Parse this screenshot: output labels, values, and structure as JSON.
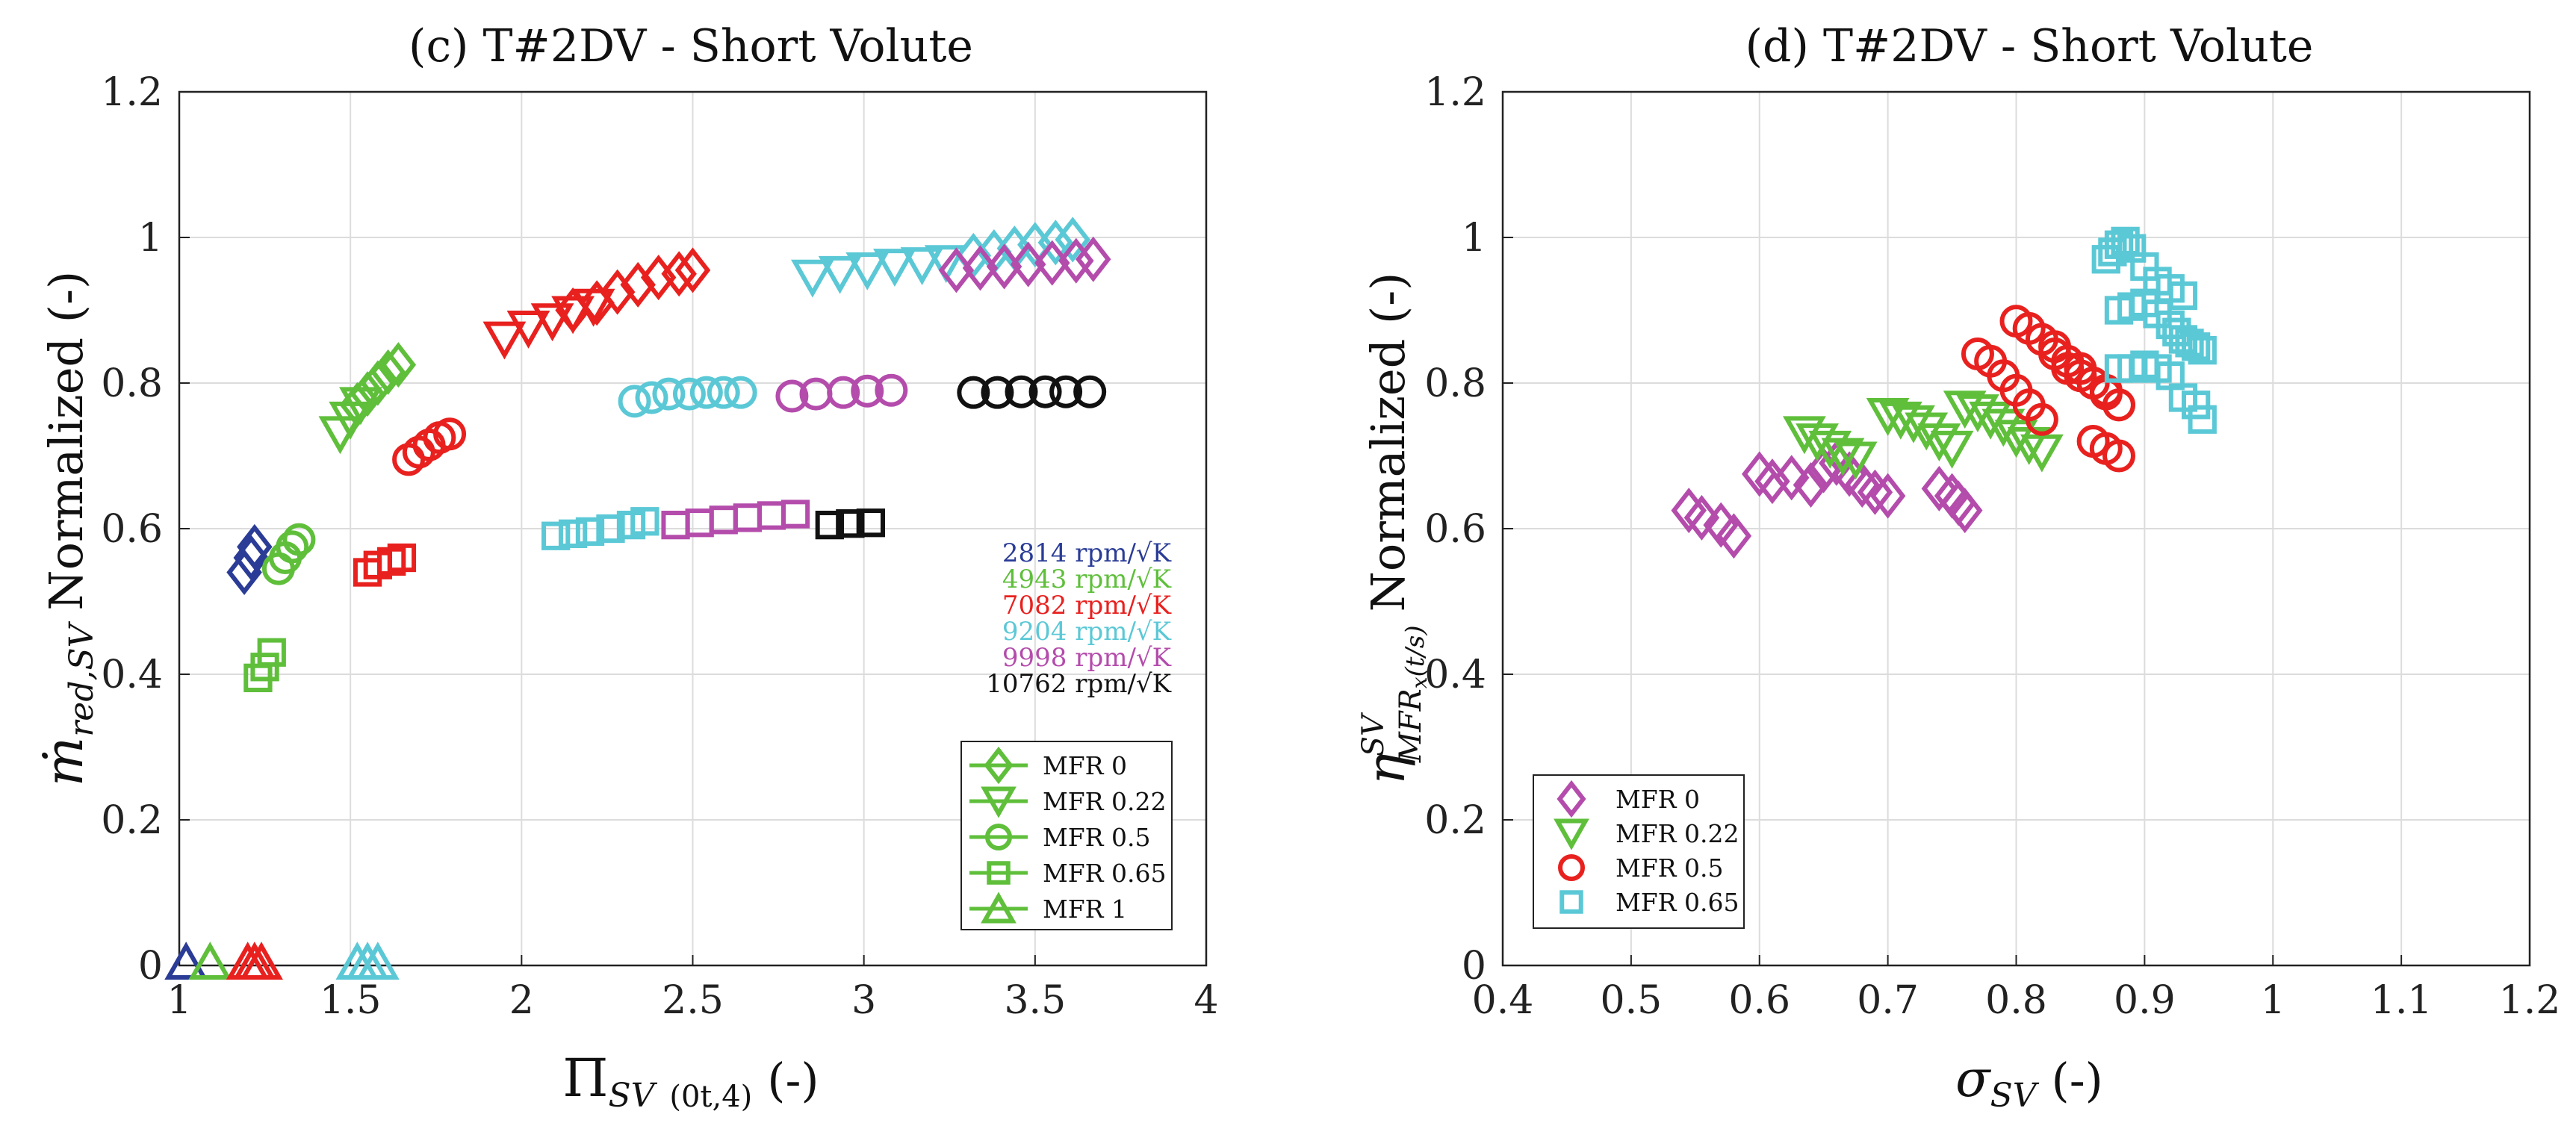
{
  "chart_data": [
    {
      "type": "scatter",
      "title": "(c) T#2DV - Short Volute",
      "xlabel": "Π_SV (0t,4) (-)",
      "xlabel_main": "Π",
      "xlabel_sub": "SV",
      "xlabel_sub2": "(0t,4)",
      "xlabel_unit": "(-)",
      "ylabel": "ṁ_red,SV Normalized (-)",
      "ylabel_main": "ṁ",
      "ylabel_sub": "red,SV",
      "ylabel_rest": "Normalized (-)",
      "xlim": [
        1,
        4
      ],
      "ylim": [
        0,
        1.2
      ],
      "xticks": [
        1,
        1.5,
        2,
        2.5,
        3,
        3.5,
        4
      ],
      "xtick_labels": [
        "1",
        "1.5",
        "2",
        "2.5",
        "3",
        "3.5",
        "4"
      ],
      "yticks": [
        0,
        0.2,
        0.4,
        0.6,
        0.8,
        1,
        1.2
      ],
      "ytick_labels": [
        "0",
        "0.2",
        "0.4",
        "0.6",
        "0.8",
        "1",
        "1.2"
      ],
      "grid": true,
      "speed_legend": [
        {
          "label": "2814 rpm/√K",
          "color": "#2a3c96"
        },
        {
          "label": "4943 rpm/√K",
          "color": "#5fbf3b"
        },
        {
          "label": "7082 rpm/√K",
          "color": "#e8211f"
        },
        {
          "label": "9204 rpm/√K",
          "color": "#5bc8d6"
        },
        {
          "label": "9998 rpm/√K",
          "color": "#b44cac"
        },
        {
          "label": "10762 rpm/√K",
          "color": "#111111"
        }
      ],
      "marker_legend": {
        "placement": "bottom-right",
        "color": "#5fbf3b",
        "entries": [
          {
            "label": "MFR 0",
            "marker": "diamond"
          },
          {
            "label": "MFR 0.22",
            "marker": "triangle-down"
          },
          {
            "label": "MFR 0.5",
            "marker": "circle"
          },
          {
            "label": "MFR 0.65",
            "marker": "square"
          },
          {
            "label": "MFR 1",
            "marker": "triangle-up"
          }
        ]
      },
      "series": [
        {
          "name": "2814 MFR 0",
          "color": "#2a3c96",
          "marker": "diamond",
          "x": [
            1.19,
            1.21,
            1.22
          ],
          "y": [
            0.54,
            0.56,
            0.575
          ]
        },
        {
          "name": "2814 MFR 1",
          "color": "#2a3c96",
          "marker": "triangle-up",
          "x": [
            1.02
          ],
          "y": [
            0.005
          ]
        },
        {
          "name": "4943 MFR 0",
          "color": "#5fbf3b",
          "marker": "diamond",
          "x": [
            1.52,
            1.55,
            1.58,
            1.61,
            1.64
          ],
          "y": [
            0.77,
            0.785,
            0.8,
            0.815,
            0.825
          ]
        },
        {
          "name": "4943 MFR 0.22",
          "color": "#5fbf3b",
          "marker": "triangle-down",
          "x": [
            1.47,
            1.5,
            1.53
          ],
          "y": [
            0.73,
            0.75,
            0.77
          ]
        },
        {
          "name": "4943 MFR 0.5",
          "color": "#5fbf3b",
          "marker": "circle",
          "x": [
            1.29,
            1.31,
            1.33,
            1.35
          ],
          "y": [
            0.545,
            0.56,
            0.575,
            0.585
          ]
        },
        {
          "name": "4943 MFR 0.65",
          "color": "#5fbf3b",
          "marker": "square",
          "x": [
            1.23,
            1.25,
            1.27
          ],
          "y": [
            0.395,
            0.41,
            0.43
          ]
        },
        {
          "name": "4943 MFR 1",
          "color": "#5fbf3b",
          "marker": "triangle-up",
          "x": [
            1.09
          ],
          "y": [
            0.005
          ]
        },
        {
          "name": "7082 MFR 0",
          "color": "#e8211f",
          "marker": "diamond",
          "x": [
            2.15,
            2.22,
            2.28,
            2.34,
            2.4,
            2.46,
            2.5
          ],
          "y": [
            0.9,
            0.91,
            0.925,
            0.935,
            0.945,
            0.95,
            0.955
          ]
        },
        {
          "name": "7082 MFR 0.22",
          "color": "#e8211f",
          "marker": "triangle-down",
          "x": [
            1.95,
            2.02,
            2.09,
            2.15,
            2.21
          ],
          "y": [
            0.86,
            0.875,
            0.885,
            0.895,
            0.905
          ]
        },
        {
          "name": "7082 MFR 0.5",
          "color": "#e8211f",
          "marker": "circle",
          "x": [
            1.67,
            1.7,
            1.73,
            1.76,
            1.79
          ],
          "y": [
            0.695,
            0.705,
            0.715,
            0.725,
            0.73
          ]
        },
        {
          "name": "7082 MFR 0.65",
          "color": "#e8211f",
          "marker": "square",
          "x": [
            1.55,
            1.58,
            1.62,
            1.65
          ],
          "y": [
            0.54,
            0.55,
            0.555,
            0.56
          ]
        },
        {
          "name": "7082 MFR 1",
          "color": "#e8211f",
          "marker": "triangle-up",
          "x": [
            1.2,
            1.22,
            1.24
          ],
          "y": [
            0.005,
            0.005,
            0.005
          ]
        },
        {
          "name": "9204 MFR 0",
          "color": "#5bc8d6",
          "marker": "diamond",
          "x": [
            3.32,
            3.38,
            3.44,
            3.5,
            3.56,
            3.61
          ],
          "y": [
            0.975,
            0.98,
            0.985,
            0.99,
            0.993,
            0.997
          ]
        },
        {
          "name": "9204 MFR 0.22",
          "color": "#5bc8d6",
          "marker": "triangle-down",
          "x": [
            2.85,
            2.93,
            3.01,
            3.09,
            3.17,
            3.24
          ],
          "y": [
            0.945,
            0.95,
            0.955,
            0.96,
            0.962,
            0.965
          ]
        },
        {
          "name": "9204 MFR 0.5",
          "color": "#5bc8d6",
          "marker": "circle",
          "x": [
            2.33,
            2.38,
            2.43,
            2.49,
            2.54,
            2.59,
            2.64
          ],
          "y": [
            0.775,
            0.78,
            0.785,
            0.785,
            0.787,
            0.787,
            0.787
          ]
        },
        {
          "name": "9204 MFR 0.65",
          "color": "#5bc8d6",
          "marker": "square",
          "x": [
            2.1,
            2.15,
            2.2,
            2.26,
            2.32,
            2.36
          ],
          "y": [
            0.59,
            0.593,
            0.596,
            0.6,
            0.605,
            0.61
          ]
        },
        {
          "name": "9204 MFR 1",
          "color": "#5bc8d6",
          "marker": "triangle-up",
          "x": [
            1.52,
            1.55,
            1.58
          ],
          "y": [
            0.005,
            0.005,
            0.005
          ]
        },
        {
          "name": "9998 MFR 0",
          "color": "#b44cac",
          "marker": "diamond",
          "x": [
            3.27,
            3.34,
            3.41,
            3.48,
            3.55,
            3.62,
            3.67
          ],
          "y": [
            0.955,
            0.958,
            0.96,
            0.963,
            0.965,
            0.968,
            0.97
          ]
        },
        {
          "name": "9998 MFR 0.5",
          "color": "#b44cac",
          "marker": "circle",
          "x": [
            2.79,
            2.86,
            2.94,
            3.01,
            3.08
          ],
          "y": [
            0.782,
            0.785,
            0.787,
            0.789,
            0.79
          ]
        },
        {
          "name": "9998 MFR 0.65",
          "color": "#b44cac",
          "marker": "square",
          "x": [
            2.45,
            2.52,
            2.59,
            2.66,
            2.73,
            2.8
          ],
          "y": [
            0.605,
            0.608,
            0.612,
            0.615,
            0.618,
            0.62
          ]
        },
        {
          "name": "10762 MFR 0.5",
          "color": "#111111",
          "marker": "circle",
          "x": [
            3.32,
            3.39,
            3.46,
            3.53,
            3.59,
            3.66
          ],
          "y": [
            0.787,
            0.787,
            0.788,
            0.788,
            0.788,
            0.788
          ]
        },
        {
          "name": "10762 MFR 0.65",
          "color": "#111111",
          "marker": "square",
          "x": [
            2.9,
            2.96,
            3.02
          ],
          "y": [
            0.605,
            0.607,
            0.608
          ]
        }
      ]
    },
    {
      "type": "scatter",
      "title": "(d) T#2DV - Short Volute",
      "xlabel": "σ_SV (-)",
      "xlabel_main": "σ",
      "xlabel_sub": "SV",
      "xlabel_unit": "(-)",
      "ylabel": "η^SV_MFR_x(t/s) Normalized (-)",
      "ylabel_main": "η",
      "ylabel_sup": "SV",
      "ylabel_sub": "MFR",
      "ylabel_sub2": "x",
      "ylabel_sub3": "(t/s)",
      "ylabel_rest": "Normalized (-)",
      "xlim": [
        0.4,
        1.2
      ],
      "ylim": [
        0,
        1.2
      ],
      "xticks": [
        0.4,
        0.5,
        0.6,
        0.7,
        0.8,
        0.9,
        1,
        1.1,
        1.2
      ],
      "xtick_labels": [
        "0.4",
        "0.5",
        "0.6",
        "0.7",
        "0.8",
        "0.9",
        "1",
        "1.1",
        "1.2"
      ],
      "yticks": [
        0,
        0.2,
        0.4,
        0.6,
        0.8,
        1,
        1.2
      ],
      "ytick_labels": [
        "0",
        "0.2",
        "0.4",
        "0.6",
        "0.8",
        "1",
        "1.2"
      ],
      "grid": true,
      "marker_legend": {
        "placement": "bottom-left",
        "entries": [
          {
            "label": "MFR 0",
            "marker": "diamond",
            "color": "#b44cac"
          },
          {
            "label": "MFR 0.22",
            "marker": "triangle-down",
            "color": "#5fbf3b"
          },
          {
            "label": "MFR 0.5",
            "marker": "circle",
            "color": "#e8211f"
          },
          {
            "label": "MFR 0.65",
            "marker": "square",
            "color": "#5bc8d6"
          }
        ]
      },
      "series": [
        {
          "name": "MFR 0",
          "color": "#b44cac",
          "marker": "diamond",
          "x": [
            0.545,
            0.555,
            0.57,
            0.58,
            0.6,
            0.61,
            0.625,
            0.64,
            0.65,
            0.66,
            0.67,
            0.68,
            0.69,
            0.7,
            0.74,
            0.75,
            0.755,
            0.76
          ],
          "y": [
            0.625,
            0.615,
            0.605,
            0.59,
            0.675,
            0.665,
            0.67,
            0.66,
            0.68,
            0.69,
            0.675,
            0.66,
            0.65,
            0.645,
            0.655,
            0.645,
            0.635,
            0.625
          ]
        },
        {
          "name": "MFR 0.22",
          "color": "#5fbf3b",
          "marker": "triangle-down",
          "x": [
            0.635,
            0.645,
            0.655,
            0.665,
            0.675,
            0.7,
            0.71,
            0.72,
            0.73,
            0.74,
            0.75,
            0.76,
            0.77,
            0.78,
            0.79,
            0.8,
            0.81,
            0.82
          ],
          "y": [
            0.73,
            0.72,
            0.71,
            0.7,
            0.695,
            0.755,
            0.75,
            0.745,
            0.735,
            0.72,
            0.71,
            0.765,
            0.76,
            0.75,
            0.74,
            0.725,
            0.715,
            0.705
          ]
        },
        {
          "name": "MFR 0.5",
          "color": "#e8211f",
          "marker": "circle",
          "x": [
            0.77,
            0.78,
            0.79,
            0.8,
            0.81,
            0.82,
            0.83,
            0.84,
            0.85,
            0.86,
            0.87,
            0.88,
            0.8,
            0.81,
            0.82,
            0.83,
            0.84,
            0.85,
            0.86,
            0.87,
            0.88,
            0.86,
            0.87,
            0.88
          ],
          "y": [
            0.84,
            0.83,
            0.81,
            0.79,
            0.77,
            0.75,
            0.84,
            0.83,
            0.82,
            0.8,
            0.79,
            0.77,
            0.885,
            0.875,
            0.86,
            0.85,
            0.82,
            0.81,
            0.8,
            0.785,
            0.77,
            0.72,
            0.71,
            0.7
          ]
        },
        {
          "name": "MFR 0.65",
          "color": "#5bc8d6",
          "marker": "square",
          "x": [
            0.87,
            0.875,
            0.88,
            0.885,
            0.89,
            0.9,
            0.91,
            0.92,
            0.93,
            0.88,
            0.89,
            0.9,
            0.91,
            0.92,
            0.925,
            0.93,
            0.935,
            0.94,
            0.945,
            0.88,
            0.89,
            0.9,
            0.91,
            0.92,
            0.93,
            0.94,
            0.945
          ],
          "y": [
            0.97,
            0.98,
            0.99,
            0.995,
            0.985,
            0.96,
            0.94,
            0.93,
            0.92,
            0.9,
            0.905,
            0.91,
            0.895,
            0.88,
            0.87,
            0.86,
            0.855,
            0.85,
            0.845,
            0.82,
            0.82,
            0.825,
            0.82,
            0.81,
            0.78,
            0.77,
            0.75
          ]
        }
      ]
    }
  ]
}
